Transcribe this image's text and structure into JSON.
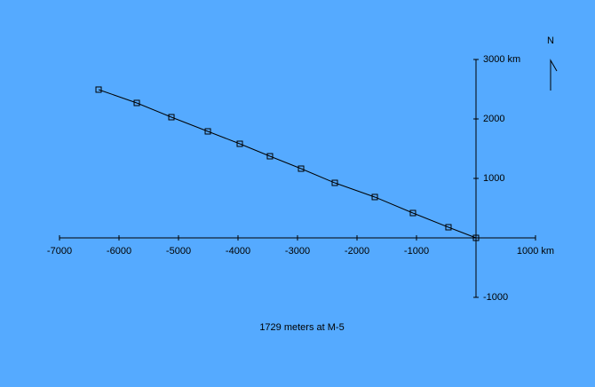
{
  "chart_data": {
    "type": "line",
    "caption": "1729 meters at M-5",
    "north_label": "N",
    "x": [
      -6343,
      -5701,
      -5119,
      -4507,
      -3970,
      -3463,
      -2940,
      -2373,
      -1701,
      -1060,
      -463,
      0
    ],
    "values": [
      2493,
      2269,
      2030,
      1791,
      1582,
      1373,
      1164,
      925,
      687,
      418,
      179,
      0
    ],
    "color": "#000000",
    "background": "#55aaff",
    "xlim": [
      -7000,
      1000
    ],
    "ylim": [
      -1000,
      3000
    ],
    "xticks": [
      -7000,
      -6000,
      -5000,
      -4000,
      -3000,
      -2000,
      -1000,
      {
        "value": 1000,
        "label": "1000 km"
      }
    ],
    "yticks": [
      -1000,
      1000,
      2000,
      {
        "value": 3000,
        "label": "3000 km"
      }
    ]
  }
}
